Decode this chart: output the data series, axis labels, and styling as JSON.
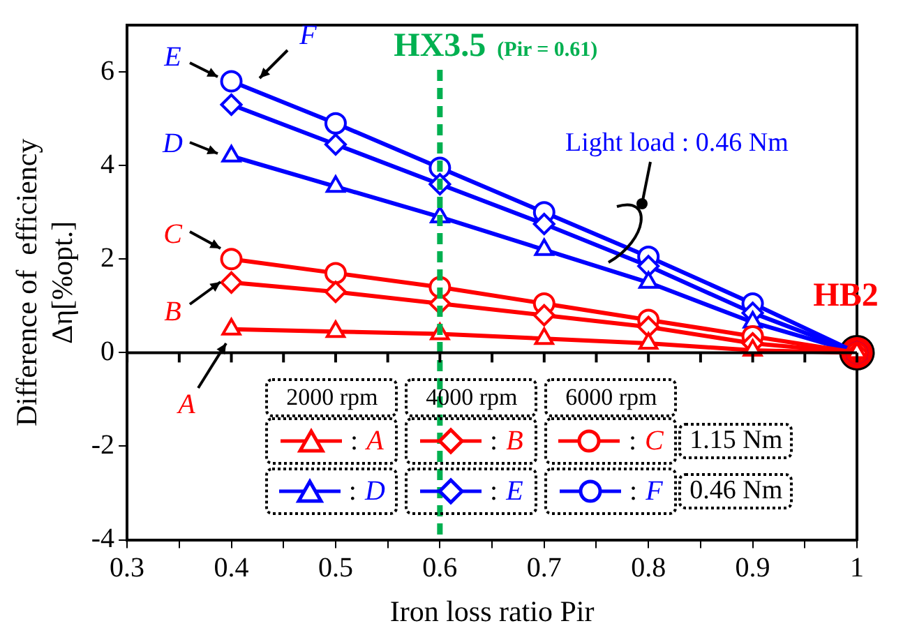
{
  "chart_data": {
    "type": "line",
    "xlabel": "Iron loss ratio Pir",
    "ylabel": "Difference of  efficiency\nΔη[%opt.]",
    "x": [
      0.4,
      0.5,
      0.6,
      0.7,
      0.8,
      0.9,
      1.0
    ],
    "xlim": [
      0.3,
      1.0
    ],
    "xticks": [
      0.3,
      {
        "value": 0.35,
        "label": null
      },
      0.4,
      {
        "value": 0.45,
        "label": null
      },
      0.5,
      {
        "value": 0.55,
        "label": null
      },
      0.6,
      {
        "value": 0.65,
        "label": null
      },
      0.7,
      {
        "value": 0.75,
        "label": null
      },
      0.8,
      {
        "value": 0.85,
        "label": null
      },
      0.9,
      {
        "value": 0.95,
        "label": null
      },
      {
        "value": 1.0,
        "label": "1"
      }
    ],
    "ylim": [
      -4,
      7
    ],
    "yticks": [
      -4,
      -2,
      0,
      2,
      4,
      6
    ],
    "grid": false,
    "legend": "bottom",
    "line_style": "solid",
    "series": [
      {
        "name": "A",
        "color": "#ff0000",
        "marker": "triangle",
        "values": [
          0.5,
          0.45,
          0.4,
          0.3,
          0.2,
          0.05,
          0
        ]
      },
      {
        "name": "B",
        "color": "#ff0000",
        "marker": "diamond",
        "values": [
          1.5,
          1.3,
          1.05,
          0.8,
          0.55,
          0.2,
          0
        ]
      },
      {
        "name": "C",
        "color": "#ff0000",
        "marker": "circle",
        "values": [
          2.0,
          1.7,
          1.4,
          1.05,
          0.7,
          0.35,
          0
        ]
      },
      {
        "name": "D",
        "color": "#0000ff",
        "marker": "triangle",
        "values": [
          4.2,
          3.55,
          2.9,
          2.2,
          1.5,
          0.65,
          0
        ]
      },
      {
        "name": "E",
        "color": "#0000ff",
        "marker": "diamond",
        "values": [
          5.3,
          4.45,
          3.6,
          2.75,
          1.85,
          0.85,
          0
        ]
      },
      {
        "name": "F",
        "color": "#0000ff",
        "marker": "circle",
        "values": [
          5.8,
          4.9,
          3.95,
          3.0,
          2.05,
          1.05,
          0
        ]
      },
      {
        "type": "scatter",
        "color": "#ff0000",
        "marker": "circle",
        "x": [
          1.0
        ],
        "values": [
          0
        ]
      }
    ],
    "ref_lines": [
      {
        "axis": "x",
        "value": 0.6,
        "color": "#00b050",
        "line_style": "dashed"
      }
    ],
    "annotations": [
      "Light load : 0.46 Nm",
      {
        "text": "HB2",
        "x": 1.0,
        "y": 0
      },
      "2000 rpm",
      "4000 rpm",
      "6000 rpm",
      "1.15 Nm",
      "0.46 Nm",
      ":",
      "HX3.5",
      "(Pir = 0.61)"
    ]
  }
}
